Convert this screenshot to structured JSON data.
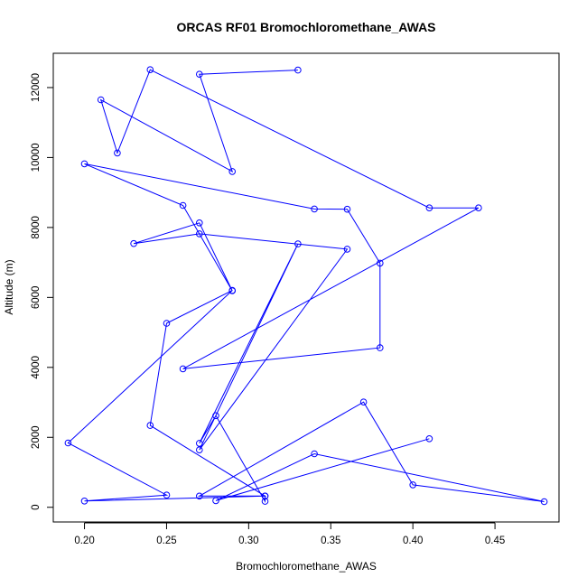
{
  "chart_data": {
    "type": "line",
    "title": "ORCAS RF01 Bromochloromethane_AWAS",
    "xlabel": "Bromochloromethane_AWAS",
    "ylabel": "Altitude (m)",
    "xlim": [
      0.181,
      0.489
    ],
    "ylim": [
      -420,
      12980
    ],
    "xticks": [
      0.2,
      0.25,
      0.3,
      0.35,
      0.4,
      0.45
    ],
    "xtick_labels": [
      "0.20",
      "0.25",
      "0.30",
      "0.35",
      "0.40",
      "0.45"
    ],
    "yticks": [
      0,
      2000,
      4000,
      6000,
      8000,
      10000,
      12000
    ],
    "ytick_labels": [
      "0",
      "2000",
      "4000",
      "6000",
      "8000",
      "10000",
      "12000"
    ],
    "grid": false,
    "legend": null,
    "series_color": "#0000ff",
    "series": [
      {
        "x": [
          0.33,
          0.27,
          0.29,
          0.21,
          0.22,
          0.24,
          0.41,
          0.44,
          0.26,
          0.38,
          0.38,
          0.36,
          0.34,
          0.2,
          0.26,
          0.29,
          0.27,
          0.23,
          0.27,
          0.36,
          0.27,
          0.33,
          0.27,
          0.28,
          0.31,
          0.31,
          0.2,
          0.25,
          0.19,
          0.29,
          0.25,
          0.24,
          0.31,
          0.27,
          0.37,
          0.4,
          0.48,
          0.34,
          0.28,
          0.41
        ],
        "y": [
          12500,
          12380,
          9600,
          11650,
          10130,
          12510,
          8560,
          8560,
          3960,
          4560,
          6980,
          8520,
          8530,
          9820,
          8630,
          6190,
          8130,
          7540,
          7820,
          7380,
          1640,
          7530,
          1830,
          2620,
          170,
          320,
          180,
          350,
          1840,
          6200,
          5260,
          2340,
          320,
          320,
          3010,
          640,
          160,
          1530,
          190,
          1960
        ]
      }
    ]
  }
}
